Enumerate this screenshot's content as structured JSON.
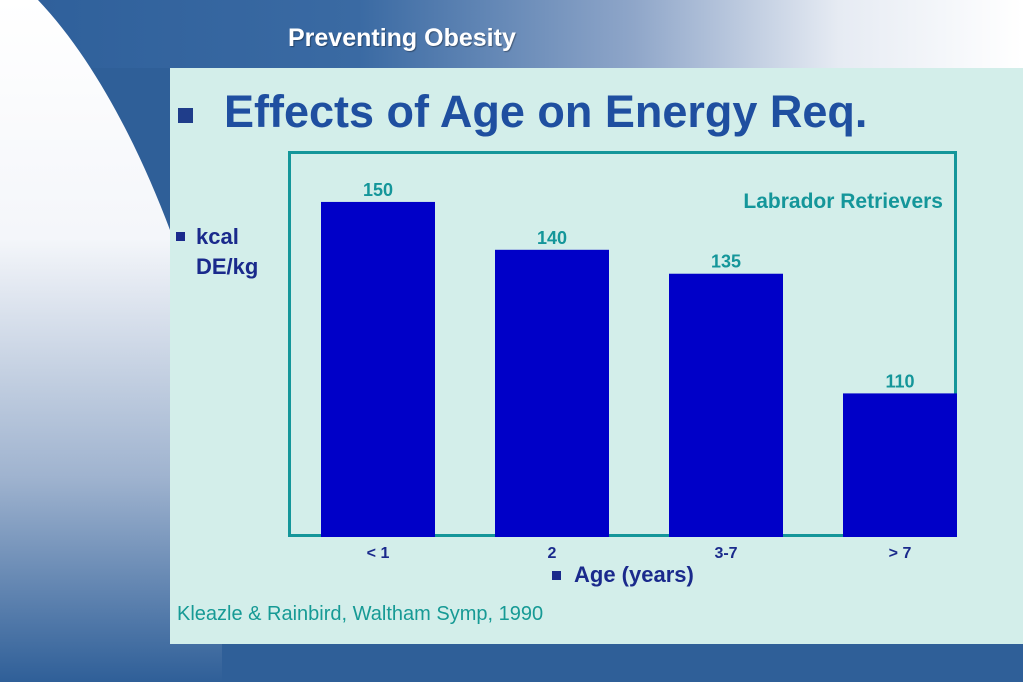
{
  "slide": {
    "header": "Preventing Obesity",
    "heading": "Effects of Age on Energy Req.",
    "citation": "Kleazle & Rainbird, Waltham Symp, 1990"
  },
  "colors": {
    "bar": "#0000c8",
    "accent_teal": "#14969a",
    "heading_blue": "#1f4fa0",
    "panel_bg": "#d3eeea"
  },
  "chart_data": {
    "type": "bar",
    "title": "Labrador Retrievers",
    "ylabel_line1": "kcal",
    "ylabel_line2": "DE/kg",
    "xlabel": "Age (years)",
    "categories": [
      "< 1",
      "2",
      "3-7",
      "> 7"
    ],
    "values": [
      150,
      140,
      135,
      110
    ],
    "ylim": [
      80,
      155
    ],
    "grid": false,
    "data_labels": true
  }
}
